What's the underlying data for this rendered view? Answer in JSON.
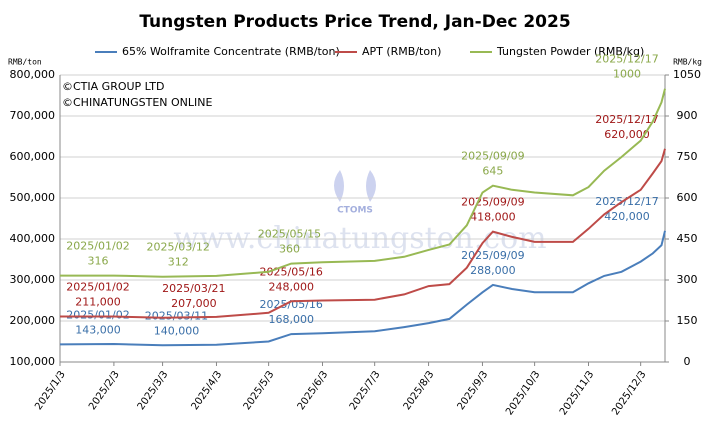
{
  "chart_data": {
    "type": "line",
    "title": "Tungsten Products Price Trend, Jan-Dec 2025",
    "ylabel": "RMB/ton",
    "y2label": "RMB/kg",
    "notes": [
      "©CTIA GROUP LTD",
      "©CHINATUNGSTEN ONLINE"
    ],
    "watermark": "www.chinatungsten.com",
    "logo": "CTOMS",
    "grid": true,
    "legend": "top",
    "x": [
      "2025/1/3",
      "2025/2/3",
      "2025/3/3",
      "2025/4/3",
      "2025/5/3",
      "2025/5/16",
      "2025/6/3",
      "2025/7/3",
      "2025/7/20",
      "2025/8/3",
      "2025/8/15",
      "2025/8/25",
      "2025/9/3",
      "2025/9/9",
      "2025/9/20",
      "2025/10/3",
      "2025/10/25",
      "2025/11/3",
      "2025/11/12",
      "2025/11/22",
      "2025/12/3",
      "2025/12/10",
      "2025/12/15",
      "2025/12/17"
    ],
    "xlim": [
      "2025/1/3",
      "2025/12/17"
    ],
    "xticks": [
      "2025/1/3",
      "2025/2/3",
      "2025/3/3",
      "2025/4/3",
      "2025/5/3",
      "2025/6/3",
      "2025/7/3",
      "2025/8/3",
      "2025/9/3",
      "2025/10/3",
      "2025/11/3",
      "2025/12/3"
    ],
    "ylim": [
      100000,
      800000
    ],
    "yticks": [
      {
        "value": 100000,
        "label": "100,000"
      },
      {
        "value": 200000,
        "label": "200,000"
      },
      {
        "value": 300000,
        "label": "300,000"
      },
      {
        "value": 400000,
        "label": "400,000"
      },
      {
        "value": 500000,
        "label": "500,000"
      },
      {
        "value": 600000,
        "label": "600,000"
      },
      {
        "value": 700000,
        "label": "700,000"
      },
      {
        "value": 800000,
        "label": "800,000"
      }
    ],
    "y2lim": [
      0,
      1050
    ],
    "y2ticks": [
      0,
      150,
      300,
      450,
      600,
      750,
      900,
      1050
    ],
    "series": [
      {
        "name": "65% Wolframite Concentrate (RMB/ton)",
        "color": "#4a7ebb",
        "label_color": "#3a6fa8",
        "values": [
          143000,
          144000,
          141000,
          142000,
          150000,
          168000,
          170000,
          175000,
          185000,
          195000,
          205000,
          240000,
          270000,
          288000,
          278000,
          270000,
          270000,
          292000,
          310000,
          320000,
          345000,
          365000,
          385000,
          420000
        ],
        "annotations": [
          {
            "date": "2025/01/02",
            "value": 143000,
            "value_label": "143,000"
          },
          {
            "date": "2025/03/11",
            "value": 140000,
            "value_label": "140,000"
          },
          {
            "date": "2025/05/16",
            "value": 168000,
            "value_label": "168,000"
          },
          {
            "date": "2025/09/09",
            "value": 288000,
            "value_label": "288,000"
          },
          {
            "date": "2025/12/17",
            "value": 420000,
            "value_label": "420,000"
          }
        ]
      },
      {
        "name": "APT (RMB/ton)",
        "color": "#be4b48",
        "label_color": "#a01818",
        "values": [
          211000,
          211000,
          208000,
          210000,
          220000,
          248000,
          250000,
          252000,
          265000,
          285000,
          290000,
          330000,
          390000,
          418000,
          405000,
          393000,
          393000,
          425000,
          460000,
          490000,
          520000,
          560000,
          590000,
          620000
        ],
        "annotations": [
          {
            "date": "2025/01/02",
            "value": 211000,
            "value_label": "211,000"
          },
          {
            "date": "2025/03/21",
            "value": 207000,
            "value_label": "207,000"
          },
          {
            "date": "2025/05/16",
            "value": 248000,
            "value_label": "248,000"
          },
          {
            "date": "2025/09/09",
            "value": 418000,
            "value_label": "418,000"
          },
          {
            "date": "2025/12/17",
            "value": 620000,
            "value_label": "620,000"
          }
        ]
      },
      {
        "name": "Tungsten Powder (RMB/kg)",
        "color": "#98b954",
        "label_color": "#8aa84a",
        "axis": "y2",
        "values": [
          316,
          316,
          312,
          315,
          330,
          360,
          365,
          370,
          385,
          410,
          430,
          500,
          620,
          645,
          630,
          620,
          610,
          640,
          700,
          750,
          810,
          880,
          950,
          1000
        ],
        "annotations": [
          {
            "date": "2025/01/02",
            "value": 316
          },
          {
            "date": "2025/03/12",
            "value": 312
          },
          {
            "date": "2025/05/15",
            "value": 360
          },
          {
            "date": "2025/09/09",
            "value": 645
          },
          {
            "date": "2025/12/17",
            "value": 1000
          }
        ]
      }
    ]
  }
}
